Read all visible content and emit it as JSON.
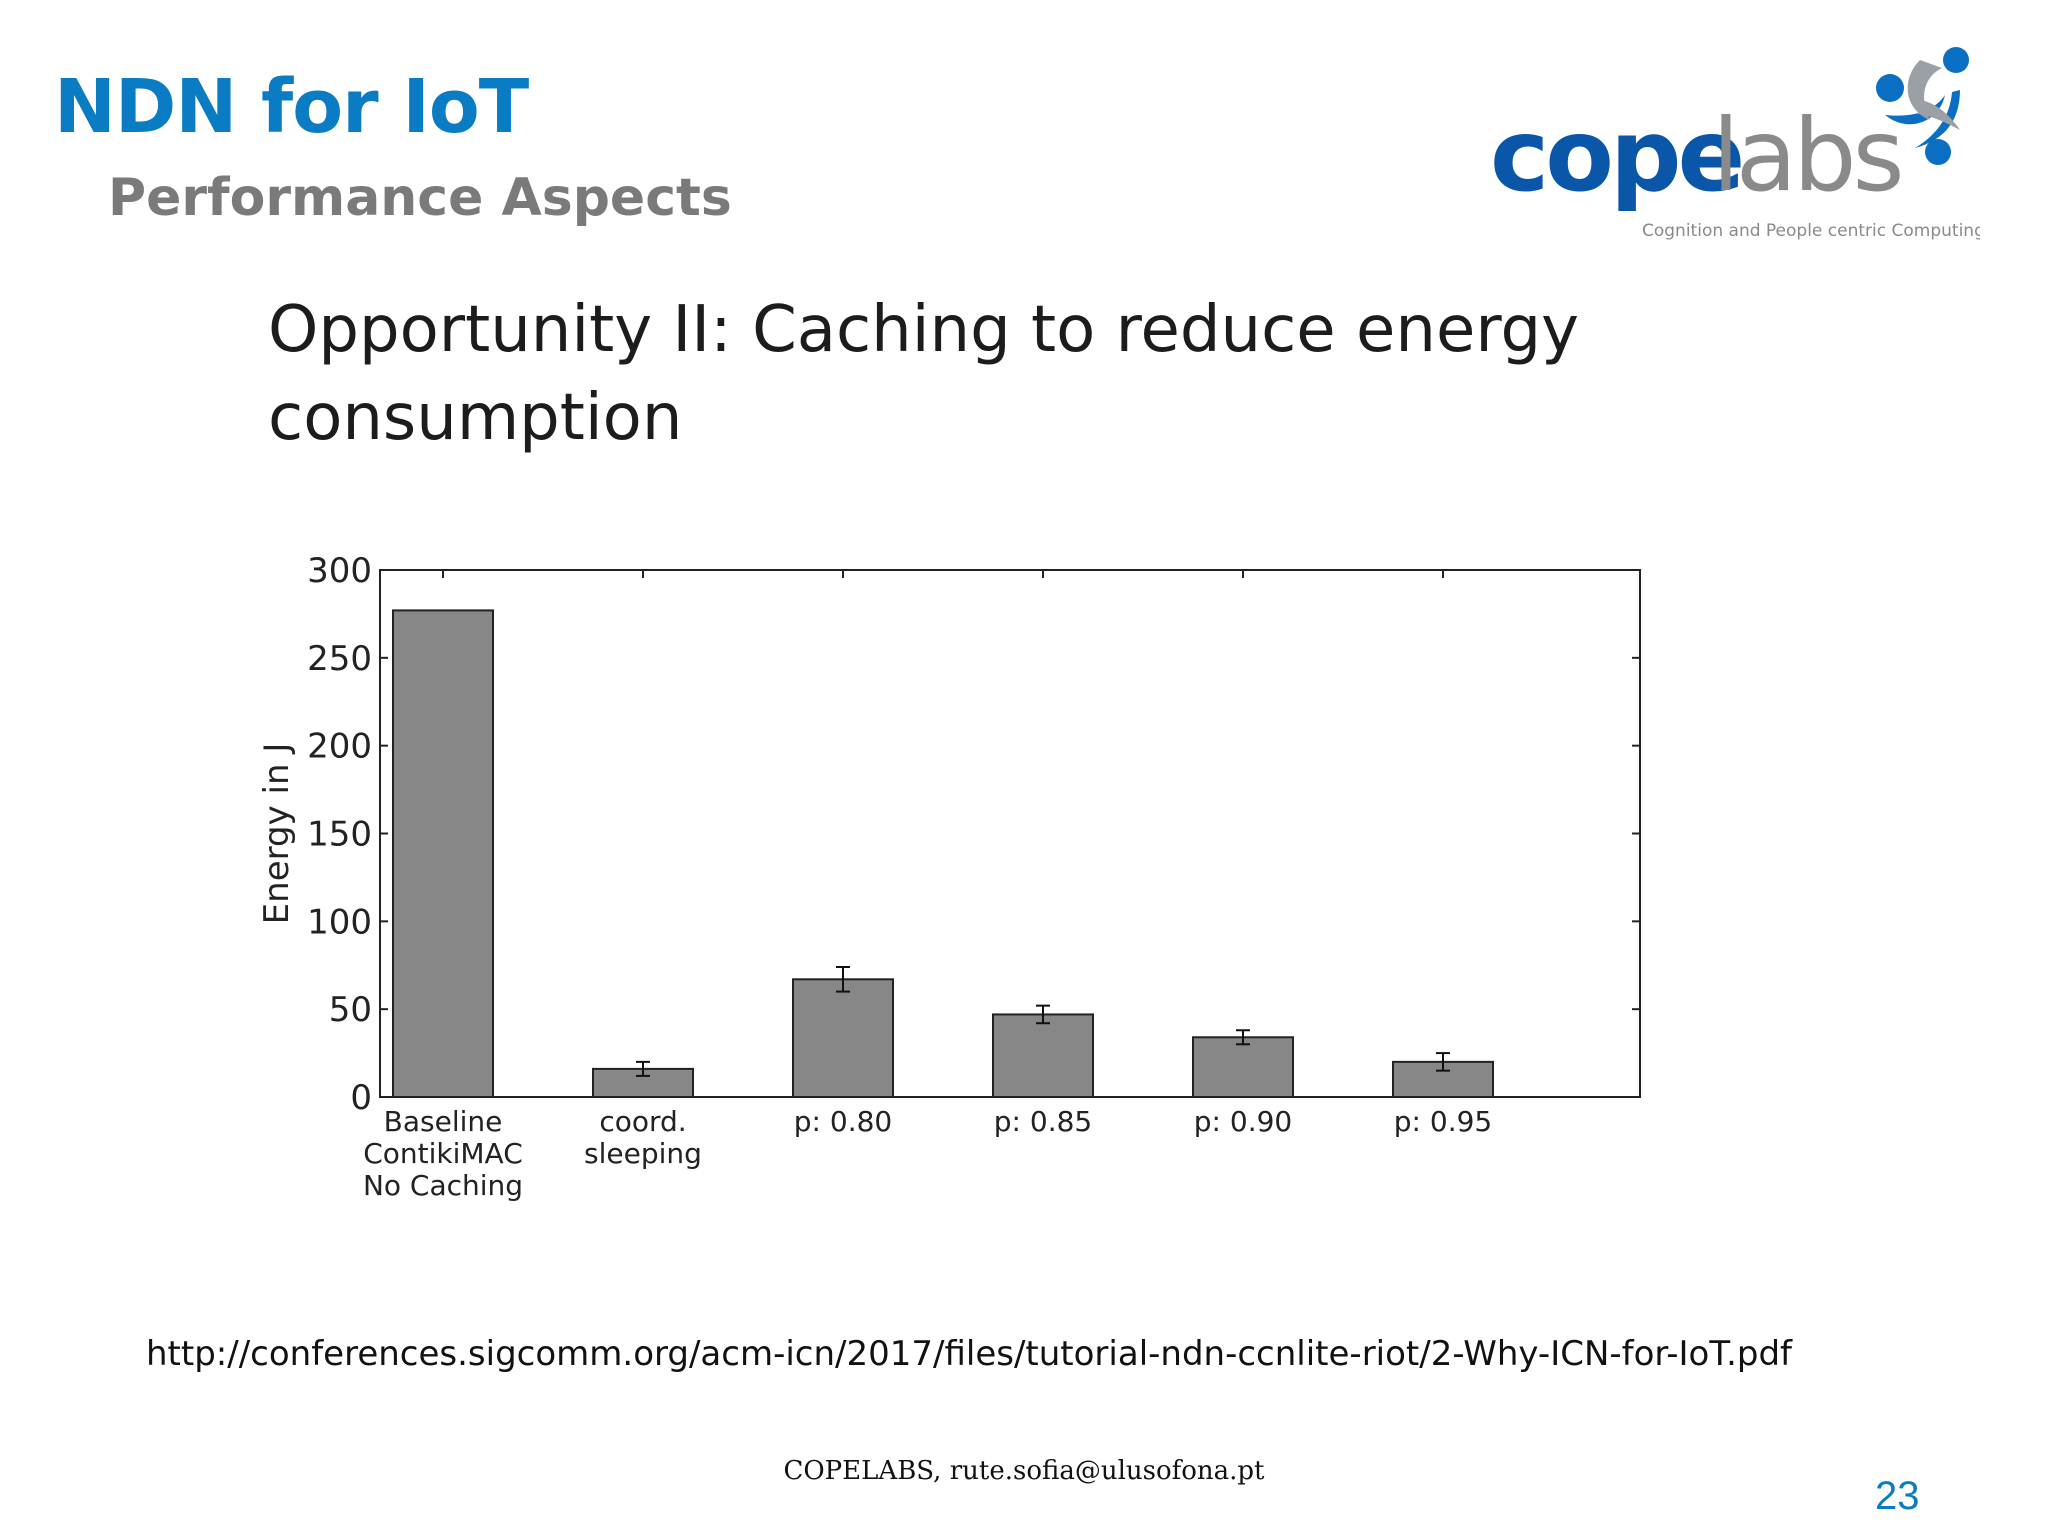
{
  "slide": {
    "title": "NDN for IoT",
    "subtitle": "Performance Aspects",
    "heading_line1": "Opportunity II: Caching to reduce energy",
    "heading_line2": "consumption",
    "source_url": "http://conferences.sigcomm.org/acm-icn/2017/files/tutorial-ndn-ccnlite-riot/2-Why-ICN-for-IoT.pdf",
    "footer": "COPELABS, rute.sofia@ulusofona.pt",
    "page_number": "23"
  },
  "logo": {
    "text_cope": "cope",
    "text_labs": "labs",
    "tagline": "Cognition and People centric Computing Labs",
    "color_cope": "#0a56a8",
    "color_labs": "#8a8a8a",
    "color_mark": "#0a6fc2"
  },
  "chart_data": {
    "type": "bar",
    "categories": [
      [
        "Baseline",
        "ContikiMAC",
        "No Caching"
      ],
      [
        "coord.",
        "sleeping"
      ],
      [
        "p: 0.80"
      ],
      [
        "p: 0.85"
      ],
      [
        "p: 0.90"
      ],
      [
        "p: 0.95"
      ]
    ],
    "values": [
      277,
      16,
      67,
      47,
      34,
      20
    ],
    "error": [
      0,
      4,
      7,
      5,
      4,
      5
    ],
    "ylabel": "Energy in J",
    "xlabel": "",
    "ylim": [
      0,
      300
    ],
    "yticks": [
      0,
      50,
      100,
      150,
      200,
      250,
      300
    ],
    "bar_color": "#878787",
    "grid": false
  }
}
